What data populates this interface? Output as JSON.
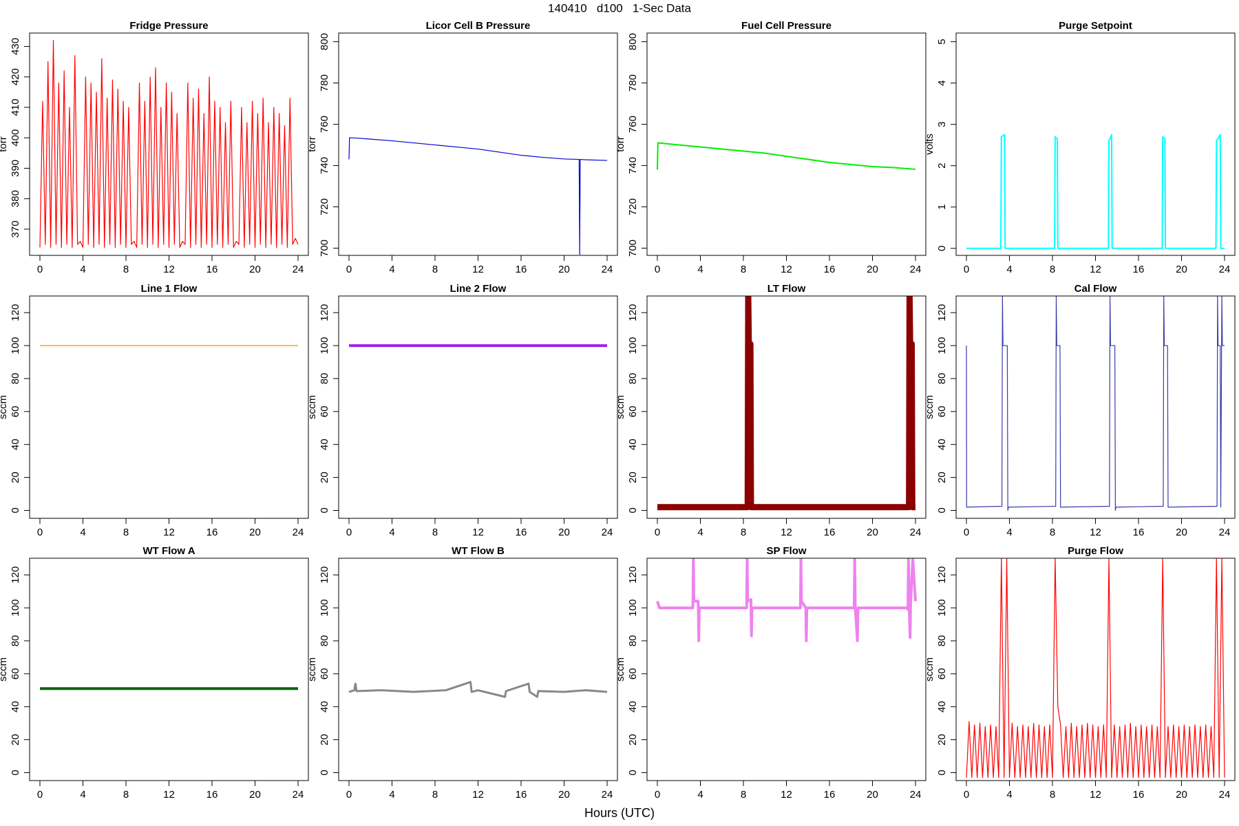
{
  "title": "140410   d100   1-Sec Data",
  "xlabel": "Hours (UTC)",
  "chart_data": [
    {
      "type": "line",
      "title": "Fridge Pressure",
      "ylabel": "torr",
      "color": "#ff0000",
      "x": [
        0,
        0.25,
        0.5,
        0.75,
        1,
        1.25,
        1.5,
        1.75,
        2,
        2.25,
        2.5,
        2.75,
        3,
        3.25,
        3.5,
        3.75,
        4,
        4.25,
        4.5,
        4.75,
        5,
        5.25,
        5.5,
        5.75,
        6,
        6.25,
        6.5,
        6.75,
        7,
        7.25,
        7.5,
        7.75,
        8,
        8.25,
        8.5,
        8.75,
        9,
        9.25,
        9.5,
        9.75,
        10,
        10.25,
        10.5,
        10.75,
        11,
        11.25,
        11.5,
        11.75,
        12,
        12.25,
        12.5,
        12.75,
        13,
        13.25,
        13.5,
        13.75,
        14,
        14.25,
        14.5,
        14.75,
        15,
        15.25,
        15.5,
        15.75,
        16,
        16.25,
        16.5,
        16.75,
        17,
        17.25,
        17.5,
        17.75,
        18,
        18.25,
        18.5,
        18.75,
        19,
        19.25,
        19.5,
        19.75,
        20,
        20.25,
        20.5,
        20.75,
        21,
        21.25,
        21.5,
        21.75,
        22,
        22.25,
        22.5,
        22.75,
        23,
        23.25,
        23.5,
        23.75,
        24
      ],
      "values": [
        364,
        412,
        365,
        425,
        364,
        432,
        365,
        418,
        364,
        422,
        365,
        410,
        364,
        427,
        365,
        366,
        364,
        420,
        365,
        418,
        364,
        415,
        365,
        426,
        364,
        413,
        365,
        419,
        364,
        416,
        365,
        412,
        364,
        410,
        365,
        366,
        364,
        418,
        365,
        412,
        364,
        420,
        365,
        423,
        364,
        410,
        365,
        418,
        364,
        415,
        365,
        408,
        364,
        366,
        365,
        418,
        364,
        413,
        365,
        416,
        364,
        408,
        365,
        420,
        364,
        412,
        365,
        410,
        364,
        405,
        365,
        412,
        364,
        366,
        365,
        410,
        364,
        405,
        365,
        412,
        364,
        408,
        365,
        413,
        364,
        405,
        365,
        410,
        364,
        408,
        365,
        404,
        364,
        413,
        365,
        367,
        365
      ],
      "xlim": [
        -0.96,
        24.96
      ],
      "xticks": [
        0,
        4,
        8,
        12,
        16,
        20,
        24
      ],
      "ylim": [
        361.4,
        434.4
      ],
      "yticks": [
        370,
        380,
        390,
        400,
        410,
        420,
        430
      ]
    },
    {
      "type": "line",
      "title": "Licor Cell B Pressure",
      "ylabel": "torr",
      "color": "#0000cd",
      "x": [
        0,
        0.05,
        1,
        2,
        4,
        6,
        8,
        10,
        12,
        14,
        16,
        18,
        20,
        21.4,
        21.45,
        21.5,
        22,
        24
      ],
      "values": [
        743,
        753.5,
        753.2,
        752.8,
        752,
        751,
        750,
        749,
        748,
        746.5,
        745,
        744,
        743.2,
        743,
        697,
        743,
        742.8,
        742.5
      ],
      "xlim": [
        -0.96,
        24.96
      ],
      "xticks": [
        0,
        4,
        8,
        12,
        16,
        20,
        24
      ],
      "ylim": [
        696.5,
        804.2
      ],
      "yticks": [
        700,
        720,
        740,
        760,
        780,
        800
      ]
    },
    {
      "type": "line",
      "title": "Fuel Cell Pressure",
      "ylabel": "torr",
      "color": "#00ee00",
      "line_width": 2,
      "x": [
        0,
        0.05,
        1,
        2,
        4,
        6,
        8,
        10,
        12,
        14,
        16,
        18,
        20,
        22,
        24
      ],
      "values": [
        738,
        751,
        750.5,
        750,
        749,
        748,
        747,
        746,
        744.5,
        743,
        741.5,
        740.5,
        739.5,
        739,
        738.2
      ],
      "xlim": [
        -0.96,
        24.96
      ],
      "xticks": [
        0,
        4,
        8,
        12,
        16,
        20,
        24
      ],
      "ylim": [
        696.5,
        804.2
      ],
      "yticks": [
        700,
        720,
        740,
        760,
        780,
        800
      ]
    },
    {
      "type": "line",
      "title": "Purge Setpoint",
      "ylabel": "volts",
      "color": "#00ffff",
      "line_width": 2,
      "x": [
        0,
        3.2,
        3.25,
        3.55,
        3.6,
        8.2,
        8.25,
        8.45,
        8.5,
        13.2,
        13.25,
        13.5,
        13.55,
        18.2,
        18.25,
        18.45,
        18.5,
        23.2,
        23.25,
        23.6,
        23.65,
        24
      ],
      "values": [
        0,
        0,
        2.7,
        2.75,
        0,
        0,
        2.7,
        2.65,
        0,
        0,
        2.6,
        2.75,
        0,
        0,
        2.7,
        2.65,
        0,
        0,
        2.6,
        2.75,
        0,
        0
      ],
      "xlim": [
        -0.96,
        24.96
      ],
      "xticks": [
        0,
        4,
        8,
        12,
        16,
        20,
        24
      ],
      "ylim": [
        -0.17,
        5.21
      ],
      "yticks": [
        0,
        1,
        2,
        3,
        4,
        5
      ]
    },
    {
      "type": "line",
      "title": "Line 1 Flow",
      "ylabel": "sccm",
      "color": "#ffa500",
      "line_width": 1.5,
      "x": [
        0,
        24
      ],
      "values": [
        100,
        100
      ],
      "xlim": [
        -0.96,
        24.96
      ],
      "xticks": [
        0,
        4,
        8,
        12,
        16,
        20,
        24
      ],
      "ylim": [
        -4.8,
        130.1
      ],
      "yticks": [
        0,
        20,
        40,
        60,
        80,
        100,
        120
      ]
    },
    {
      "type": "line",
      "title": "Line 2 Flow",
      "ylabel": "sccm",
      "color": "#a020f0",
      "line_width": 4,
      "x": [
        0,
        24
      ],
      "values": [
        100,
        100
      ],
      "xlim": [
        -0.96,
        24.96
      ],
      "xticks": [
        0,
        4,
        8,
        12,
        16,
        20,
        24
      ],
      "ylim": [
        -4.8,
        130.1
      ],
      "yticks": [
        0,
        20,
        40,
        60,
        80,
        100,
        120
      ]
    },
    {
      "type": "line",
      "title": "LT Flow",
      "ylabel": "sccm",
      "color": "#8b0000",
      "line_width": 9,
      "x": [
        0,
        8.4,
        8.45,
        8.5,
        8.65,
        8.7,
        23.4,
        23.45,
        23.5,
        23.65,
        23.7,
        24
      ],
      "values": [
        2,
        2,
        130,
        101,
        101,
        2,
        2,
        130,
        101,
        101,
        2,
        2
      ],
      "xlim": [
        -0.96,
        24.96
      ],
      "xticks": [
        0,
        4,
        8,
        12,
        16,
        20,
        24
      ],
      "ylim": [
        -4.8,
        130.1
      ],
      "yticks": [
        0,
        20,
        40,
        60,
        80,
        100,
        120
      ]
    },
    {
      "type": "line",
      "title": "Cal Flow",
      "ylabel": "sccm",
      "color": "#3a3aa8",
      "x": [
        0,
        0.02,
        3.3,
        3.35,
        3.4,
        3.8,
        3.85,
        3.9,
        8.3,
        8.35,
        8.4,
        8.7,
        8.75,
        13.3,
        13.35,
        13.4,
        13.8,
        13.85,
        13.9,
        18.3,
        18.35,
        18.4,
        18.7,
        18.75,
        23.3,
        23.35,
        23.4,
        23.6,
        23.65,
        23.75,
        23.8,
        24
      ],
      "values": [
        100,
        2,
        2.5,
        130,
        100,
        100,
        0,
        2,
        2.5,
        130,
        100,
        100,
        2,
        2.5,
        130,
        100,
        100,
        0,
        2,
        2.5,
        130,
        100,
        100,
        2,
        2.5,
        130,
        100,
        100,
        2,
        130,
        100,
        100
      ],
      "xlim": [
        -0.96,
        24.96
      ],
      "xticks": [
        0,
        4,
        8,
        12,
        16,
        20,
        24
      ],
      "ylim": [
        -4.8,
        130.1
      ],
      "yticks": [
        0,
        20,
        40,
        60,
        80,
        100,
        120
      ]
    },
    {
      "type": "line",
      "title": "WT Flow A",
      "ylabel": "sccm",
      "color": "#006400",
      "line_width": 4,
      "x": [
        0,
        24
      ],
      "values": [
        51,
        51
      ],
      "xlim": [
        -0.96,
        24.96
      ],
      "xticks": [
        0,
        4,
        8,
        12,
        16,
        20,
        24
      ],
      "ylim": [
        -4.8,
        130.1
      ],
      "yticks": [
        0,
        20,
        40,
        60,
        80,
        100,
        120
      ]
    },
    {
      "type": "line",
      "title": "WT Flow B",
      "ylabel": "sccm",
      "color": "#888888",
      "line_width": 3,
      "x": [
        0,
        0.5,
        0.6,
        0.7,
        3,
        6,
        9,
        11.3,
        11.4,
        12,
        14.5,
        14.6,
        16.7,
        16.8,
        17.5,
        17.6,
        20,
        22,
        24
      ],
      "values": [
        49,
        50,
        54,
        49.5,
        50,
        49,
        50,
        55,
        49,
        50,
        46,
        49.5,
        54,
        49,
        46,
        49.5,
        49,
        50,
        49
      ],
      "xlim": [
        -0.96,
        24.96
      ],
      "xticks": [
        0,
        4,
        8,
        12,
        16,
        20,
        24
      ],
      "ylim": [
        -4.8,
        130.1
      ],
      "yticks": [
        0,
        20,
        40,
        60,
        80,
        100,
        120
      ]
    },
    {
      "type": "line",
      "title": "SP Flow",
      "ylabel": "sccm",
      "color": "#ee82ee",
      "line_width": 4,
      "x": [
        0,
        0.2,
        3.3,
        3.35,
        3.4,
        3.8,
        3.85,
        3.9,
        8.3,
        8.35,
        8.4,
        8.7,
        8.75,
        8.8,
        13.3,
        13.35,
        13.4,
        13.8,
        13.85,
        13.9,
        18.3,
        18.35,
        18.4,
        18.6,
        18.65,
        23.2,
        23.3,
        23.35,
        23.4,
        23.5,
        23.55,
        23.75,
        24
      ],
      "values": [
        104,
        100,
        100,
        130,
        104,
        104,
        80,
        100,
        100,
        130,
        104,
        105,
        83,
        100,
        100,
        130,
        104,
        100,
        80,
        100,
        100,
        130,
        100,
        80,
        100,
        100,
        99,
        130,
        104,
        82,
        104,
        130,
        104
      ],
      "xlim": [
        -0.96,
        24.96
      ],
      "xticks": [
        0,
        4,
        8,
        12,
        16,
        20,
        24
      ],
      "ylim": [
        -4.8,
        130.1
      ],
      "yticks": [
        0,
        20,
        40,
        60,
        80,
        100,
        120
      ]
    },
    {
      "type": "line",
      "title": "Purge Flow",
      "ylabel": "sccm",
      "color": "#ff0000",
      "x": [
        0,
        0.25,
        0.5,
        0.75,
        1,
        1.25,
        1.5,
        1.75,
        2,
        2.25,
        2.5,
        2.75,
        3,
        3.25,
        3.5,
        3.75,
        4,
        4.25,
        4.5,
        4.75,
        5,
        5.25,
        5.5,
        5.75,
        6,
        6.25,
        6.5,
        6.75,
        7,
        7.25,
        7.5,
        7.75,
        8,
        8.25,
        8.5,
        8.75,
        9,
        9.25,
        9.5,
        9.75,
        10,
        10.25,
        10.5,
        10.75,
        11,
        11.25,
        11.5,
        11.75,
        12,
        12.25,
        12.5,
        12.75,
        13,
        13.25,
        13.5,
        13.75,
        14,
        14.25,
        14.5,
        14.75,
        15,
        15.25,
        15.5,
        15.75,
        16,
        16.25,
        16.5,
        16.75,
        17,
        17.25,
        17.5,
        17.75,
        18,
        18.25,
        18.5,
        18.75,
        19,
        19.25,
        19.5,
        19.75,
        20,
        20.25,
        20.5,
        20.75,
        21,
        21.25,
        21.5,
        21.75,
        22,
        22.25,
        22.5,
        22.75,
        23,
        23.25,
        23.5,
        23.75,
        24
      ],
      "values": [
        -3,
        31,
        -3,
        29,
        -3,
        30,
        -3,
        28,
        -3,
        29,
        -3,
        28,
        -3,
        130,
        -3,
        130,
        -3,
        30,
        -3,
        28,
        -3,
        29,
        -3,
        28,
        -3,
        30,
        -3,
        29,
        -3,
        28,
        -3,
        29,
        -3,
        130,
        40,
        29,
        -3,
        28,
        -3,
        30,
        -3,
        28,
        -3,
        29,
        -3,
        30,
        -3,
        29,
        -3,
        28,
        -3,
        29,
        -3,
        130,
        -3,
        29,
        -3,
        28,
        -3,
        29,
        -3,
        30,
        -3,
        28,
        -3,
        29,
        -3,
        28,
        -3,
        29,
        -3,
        28,
        -3,
        130,
        -3,
        28,
        -3,
        29,
        -3,
        28,
        -3,
        29,
        -3,
        28,
        -3,
        29,
        -3,
        28,
        -3,
        29,
        -3,
        28,
        -3,
        130,
        -3,
        130,
        -3
      ],
      "xlim": [
        -0.96,
        24.96
      ],
      "xticks": [
        0,
        4,
        8,
        12,
        16,
        20,
        24
      ],
      "ylim": [
        -4.8,
        130.1
      ],
      "yticks": [
        0,
        20,
        40,
        60,
        80,
        100,
        120
      ]
    }
  ]
}
